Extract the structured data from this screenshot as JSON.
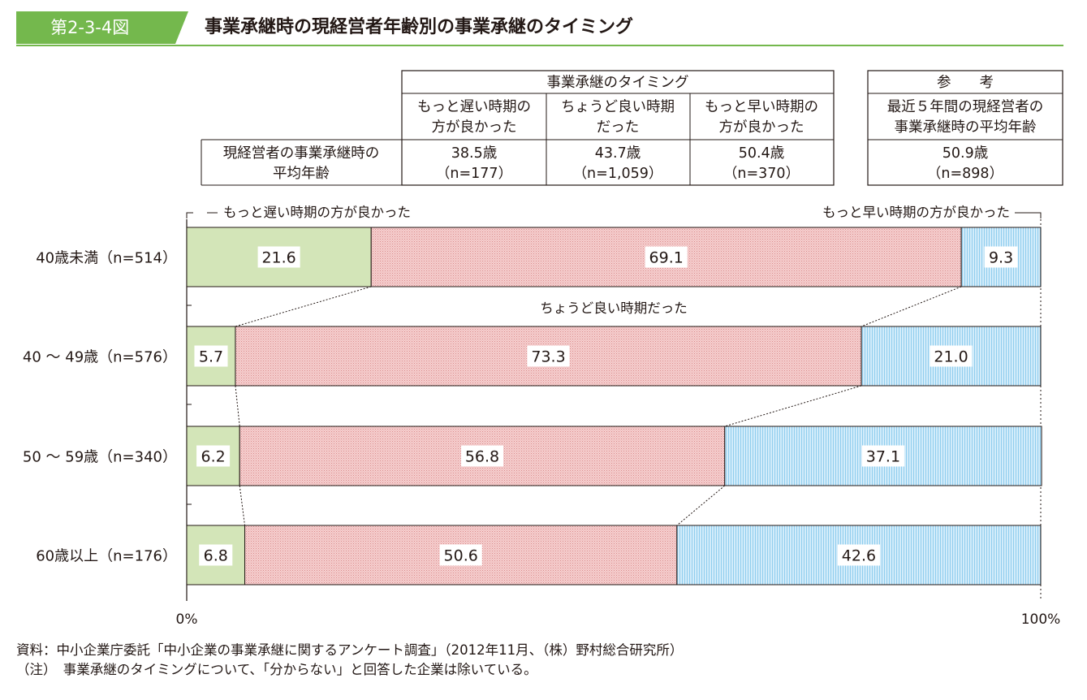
{
  "header": {
    "figure_number": "第2-3-4図",
    "title": "事業承継時の現経営者年齢別の事業承継のタイミング"
  },
  "table": {
    "group_header": "事業承継のタイミング",
    "columns": [
      [
        "もっと遅い時期の",
        "方が良かった"
      ],
      [
        "ちょうど良い時期",
        "だった"
      ],
      [
        "もっと早い時期の",
        "方が良かった"
      ]
    ],
    "row_label": [
      "現経営者の事業承継時の",
      "平均年齢"
    ],
    "values": [
      [
        "38.5歳",
        "（n=177）"
      ],
      [
        "43.7歳",
        "（n=1,059）"
      ],
      [
        "50.4歳",
        "（n=370）"
      ]
    ],
    "reference": {
      "header": "参　　考",
      "sub": [
        "最近５年間の現経営者の",
        "事業承継時の平均年齢"
      ],
      "value": [
        "50.9歳",
        "（n=898）"
      ]
    }
  },
  "chart_data": {
    "type": "bar",
    "orientation": "horizontal",
    "stacked": true,
    "percent": true,
    "categories": [
      "40歳未満（n=514）",
      "40 ～ 49歳（n=576）",
      "50 ～ 59歳（n=340）",
      "60歳以上（n=176）"
    ],
    "series": [
      {
        "name": "もっと遅い時期の方が良かった",
        "values": [
          21.6,
          5.7,
          6.2,
          6.8
        ],
        "color": "#d3e5b8"
      },
      {
        "name": "ちょうど良い時期だった",
        "values": [
          69.1,
          73.3,
          56.8,
          50.6
        ],
        "color": "#f4c2c2"
      },
      {
        "name": "もっと早い時期の方が良かった",
        "values": [
          9.3,
          21.0,
          37.1,
          42.6
        ],
        "color": "#c3e3f6"
      }
    ],
    "xlim": [
      0,
      100
    ],
    "xticks": [
      "0%",
      "100%"
    ],
    "labels": {
      "late": "もっと遅い時期の方が良かった",
      "early": "もっと早い時期の方が良かった",
      "mid": "ちょうど良い時期だった"
    }
  },
  "footnotes": {
    "source": "資料：中小企業庁委託「中小企業の事業承継に関するアンケート調査」（2012年11月、（株）野村総合研究所）",
    "note": "（注）　事業承継のタイミングについて、「分からない」と回答した企業は除いている。"
  }
}
